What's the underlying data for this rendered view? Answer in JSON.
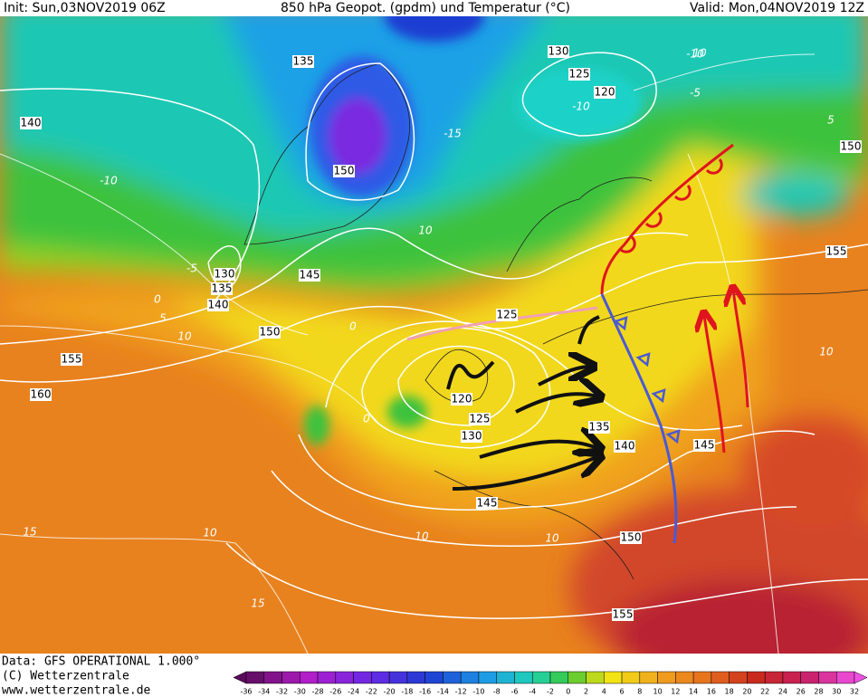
{
  "header": {
    "init": "Init: Sun,03NOV2019 06Z",
    "title": "850 hPa Geopot. (gpdm) und Temperatur (°C)",
    "valid": "Valid: Mon,04NOV2019 12Z"
  },
  "footer": {
    "data": "Data: GFS OPERATIONAL 1.000°",
    "copyright": "(C) Wetterzentrale",
    "url": "www.wetterzentrale.de"
  },
  "colorbar": {
    "labels": [
      -36,
      -34,
      -32,
      -30,
      -28,
      -26,
      -24,
      -22,
      -20,
      -18,
      -16,
      -14,
      -12,
      -10,
      -8,
      -6,
      -4,
      -2,
      0,
      2,
      4,
      6,
      8,
      10,
      12,
      14,
      16,
      18,
      20,
      22,
      24,
      26,
      28,
      30,
      32
    ]
  },
  "geopotential_labels": [
    135,
    130,
    125,
    120,
    150,
    140,
    150,
    130,
    135,
    140,
    145,
    125,
    150,
    155,
    160,
    120,
    125,
    130,
    135,
    140,
    145,
    145,
    150,
    155,
    155
  ],
  "temperature_labels": [
    -10,
    -5,
    0,
    5,
    10,
    10,
    -15,
    -10,
    -5,
    5,
    10,
    0,
    0,
    10,
    15,
    15,
    10,
    10,
    -10,
    10
  ]
}
